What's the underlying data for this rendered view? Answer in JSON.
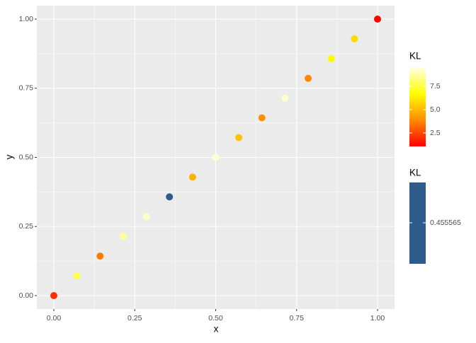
{
  "chart_data": {
    "type": "scatter",
    "x_label": "x",
    "y_label": "y",
    "xlim": [
      -0.0525,
      1.0525
    ],
    "ylim": [
      -0.0486,
      1.0486
    ],
    "xticks": [
      {
        "value": 0,
        "label": "0.00"
      },
      {
        "value": 0.25,
        "label": "0.25"
      },
      {
        "value": 0.5,
        "label": "0.50"
      },
      {
        "value": 0.75,
        "label": "0.75"
      },
      {
        "value": 1,
        "label": "1.00"
      }
    ],
    "yticks": [
      {
        "value": 0,
        "label": "0.00"
      },
      {
        "value": 0.25,
        "label": "0.25"
      },
      {
        "value": 0.5,
        "label": "0.50"
      },
      {
        "value": 0.75,
        "label": "0.75"
      },
      {
        "value": 1,
        "label": "1.00"
      }
    ],
    "grid": true,
    "series": [
      {
        "name": "KL",
        "x": [
          0,
          0.0714,
          0.1429,
          0.2143,
          0.2857,
          0.4286,
          0.5,
          0.5714,
          0.6429,
          0.7143,
          0.7857,
          0.8571,
          0.9286,
          1
        ],
        "y": [
          0,
          0.0714,
          0.1429,
          0.2143,
          0.2857,
          0.4286,
          0.5,
          0.5714,
          0.6429,
          0.7143,
          0.7857,
          0.8571,
          0.9286,
          1
        ],
        "color_values": [
          2.0,
          7.6,
          3.5,
          8.6,
          9.1,
          4.8,
          9.3,
          5.2,
          4.0,
          9.2,
          3.8,
          6.6,
          5.8,
          1.1
        ],
        "color_scale": {
          "limits": [
            1.06,
            9.55
          ],
          "colors": [
            "#ff0000",
            "#ff8c00",
            "#ffff00",
            "#ffffe8"
          ],
          "ticks": [
            2.5,
            {
              "value": 5,
              "label": "5.0"
            },
            7.5
          ]
        }
      },
      {
        "name": "KL",
        "x": [
          0.3571
        ],
        "y": [
          0.3571
        ],
        "color_values": [
          0.455565
        ],
        "color": "#2d5b8b"
      }
    ]
  }
}
